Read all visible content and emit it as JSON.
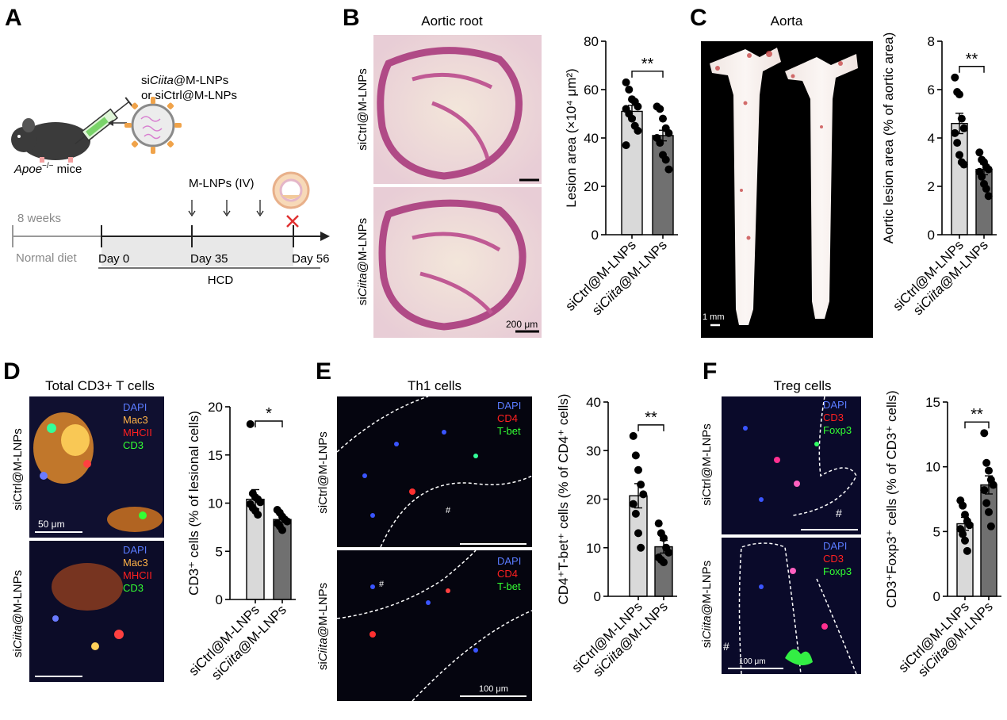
{
  "panels": {
    "A": {
      "letter": "A",
      "treatment_line1_pre": "si",
      "treatment_line1_gene": "Ciita",
      "treatment_line1_post": "@M-LNPs",
      "treatment_line2": "or siCtrl@M-LNPs",
      "mice_gene": "Apoe",
      "mice_sup": "−/−",
      "mice_suffix": " mice",
      "injection_label": "M-LNPs (IV)",
      "age": "8 weeks",
      "diet_normal": "Normal diet",
      "day0": "Day 0",
      "day35": "Day 35",
      "day56": "Day 56",
      "hcd": "HCD"
    },
    "B": {
      "letter": "B",
      "image_title": "Aortic root",
      "row1_label": "siCtrl@M-LNPs",
      "row2_pre": "si",
      "row2_gene": "Ciita",
      "row2_post": "@M-LNPs",
      "scale_bar": "200 μm"
    },
    "C": {
      "letter": "C",
      "image_title": "Aorta",
      "aorta1_label": "siCtrl@M-LNPs",
      "aorta2_pre": "si",
      "aorta2_gene": "Ciita",
      "aorta2_post": "@M-LNPs",
      "scale_bar": "1 mm"
    },
    "D": {
      "letter": "D",
      "image_title": "Total CD3+ T cells",
      "row1_label": "siCtrl@M-LNPs",
      "row2_pre": "si",
      "row2_gene": "Ciita",
      "row2_post": "@M-LNPs",
      "channels": [
        "DAPI",
        "Mac3",
        "MHCII",
        "CD3"
      ],
      "scale_bar": "50 μm"
    },
    "E": {
      "letter": "E",
      "image_title": "Th1 cells",
      "row1_label": "siCtrl@M-LNPs",
      "row2_pre": "si",
      "row2_gene": "Ciita",
      "row2_post": "@M-LNPs",
      "channels": [
        "DAPI",
        "CD4",
        "T-bet"
      ],
      "hash": "#",
      "scale_bar": "100 μm"
    },
    "F": {
      "letter": "F",
      "image_title": "Treg cells",
      "row1_label": "siCtrl@M-LNPs",
      "row2_pre": "si",
      "row2_gene": "Ciita",
      "row2_post": "@M-LNPs",
      "channels": [
        "DAPI",
        "CD3",
        "Foxp3"
      ],
      "hash": "#",
      "scale_bar": "100 μm"
    }
  },
  "colors": {
    "ctrl_bar": "#d9d9d9",
    "ciita_bar": "#707070",
    "dapi": "#5a7bff",
    "mac3": "#ffb347",
    "mhcii": "#ff2020",
    "cd3_green": "#33ff33",
    "cd4": "#ff2020",
    "tbet": "#33ff33",
    "cd3_red": "#ff2020",
    "foxp3": "#33ff33"
  },
  "chart_data": [
    {
      "id": "B",
      "type": "bar",
      "ylabel": "Lesion area (×10⁴ μm²)",
      "ylim": [
        0,
        80
      ],
      "yticks": [
        0,
        20,
        40,
        60,
        80
      ],
      "categories": [
        "siCtrl@M-LNPs",
        "siCiita@M-LNPs"
      ],
      "values": [
        51,
        41
      ],
      "errors": [
        2.5,
        2.2
      ],
      "points": [
        [
          63,
          60,
          56,
          55,
          53,
          52,
          50,
          48,
          45,
          43,
          37
        ],
        [
          53,
          52,
          48,
          44,
          42,
          40,
          38,
          33,
          31,
          27
        ]
      ],
      "significance": "**"
    },
    {
      "id": "C",
      "type": "bar",
      "ylabel": "Aortic lesion area (% of aortic area)",
      "ylim": [
        0,
        8
      ],
      "yticks": [
        0,
        2,
        4,
        6,
        8
      ],
      "categories": [
        "siCtrl@M-LNPs",
        "siCiita@M-LNPs"
      ],
      "values": [
        4.6,
        2.7
      ],
      "errors": [
        0.42,
        0.22
      ],
      "points": [
        [
          6.5,
          5.9,
          5.8,
          4.8,
          4.4,
          4.2,
          3.8,
          3.3,
          3.0,
          2.9
        ],
        [
          3.4,
          3.1,
          3.0,
          2.8,
          2.7,
          2.6,
          2.4,
          2.1,
          1.9,
          1.6
        ]
      ],
      "significance": "**"
    },
    {
      "id": "D",
      "type": "bar",
      "ylabel": "CD3⁺ cells (% of lesional cells)",
      "ylim": [
        0,
        20
      ],
      "yticks": [
        0,
        5,
        10,
        15,
        20
      ],
      "categories": [
        "siCtrl@M-LNPs",
        "siCiita@M-LNPs"
      ],
      "values": [
        10.4,
        8.3
      ],
      "errors": [
        1.0,
        0.3
      ],
      "points": [
        [
          18.2,
          11.0,
          10.6,
          10.4,
          10.1,
          9.9,
          9.5,
          9.2,
          8.8
        ],
        [
          9.3,
          9.0,
          8.6,
          8.3,
          8.1,
          7.9,
          7.6,
          7.2
        ]
      ],
      "significance": "*"
    },
    {
      "id": "E",
      "type": "bar",
      "ylabel": "CD4⁺T-bet⁺ cells (% of CD4⁺ cells)",
      "ylim": [
        0,
        40
      ],
      "yticks": [
        0,
        10,
        20,
        30,
        40
      ],
      "categories": [
        "siCtrl@M-LNPs",
        "siCiita@M-LNPs"
      ],
      "values": [
        20.7,
        10.2
      ],
      "errors": [
        2.5,
        1.3
      ],
      "points": [
        [
          33,
          29,
          26,
          23,
          21,
          19,
          17,
          13,
          10
        ],
        [
          15,
          13,
          12,
          10,
          9,
          8,
          7.5,
          7
        ]
      ],
      "significance": "**"
    },
    {
      "id": "F",
      "type": "bar",
      "ylabel": "CD3⁺Foxp3⁺ cells (% of CD3⁺ cells)",
      "ylim": [
        0,
        15
      ],
      "yticks": [
        0,
        5,
        10,
        15
      ],
      "categories": [
        "siCtrl@M-LNPs",
        "siCiita@M-LNPs"
      ],
      "values": [
        5.6,
        8.6
      ],
      "errors": [
        0.5,
        0.7
      ],
      "points": [
        [
          7.4,
          7.0,
          6.3,
          5.8,
          5.5,
          5.2,
          4.8,
          4.3,
          3.5
        ],
        [
          12.6,
          10.3,
          9.7,
          9.0,
          8.6,
          8.2,
          7.2,
          6.5,
          5.4
        ]
      ],
      "significance": "**"
    }
  ]
}
